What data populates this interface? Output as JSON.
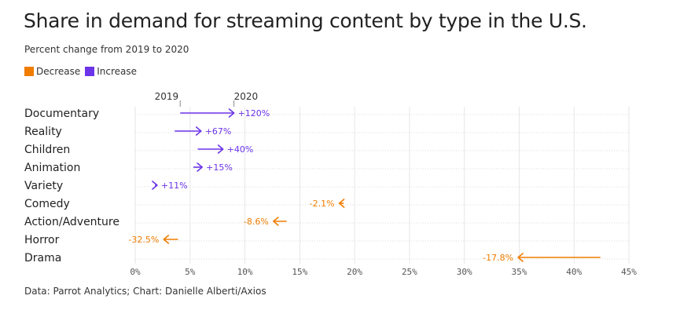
{
  "header": {
    "title": "Share in demand for streaming content by type in the U.S.",
    "subtitle": "Percent change from 2019 to 2020"
  },
  "legend": {
    "decrease_label": "Decrease",
    "increase_label": "Increase",
    "decrease_color": "#f07d00",
    "increase_color": "#6b34e8"
  },
  "year_labels": {
    "start": "2019",
    "end": "2020"
  },
  "footer": {
    "source": "Data: Parrot Analytics; Chart: Danielle Alberti/Axios"
  },
  "chart_data": {
    "type": "arrow",
    "categories": [
      "Documentary",
      "Reality",
      "Children",
      "Animation",
      "Variety",
      "Comedy",
      "Action/Adventure",
      "Horror",
      "Drama"
    ],
    "series": [
      {
        "name": "2019",
        "values": [
          4.1,
          3.6,
          5.7,
          5.3,
          1.8,
          19.0,
          13.8,
          3.9,
          42.4
        ]
      },
      {
        "name": "2020",
        "values": [
          9.0,
          6.0,
          8.0,
          6.1,
          2.0,
          18.6,
          12.6,
          2.6,
          34.9
        ]
      }
    ],
    "change_labels": [
      "+120%",
      "+67%",
      "+40%",
      "+15%",
      "+11%",
      "-2.1%",
      "-8.6%",
      "-32.5%",
      "-17.8%"
    ],
    "direction": [
      "increase",
      "increase",
      "increase",
      "increase",
      "increase",
      "decrease",
      "decrease",
      "decrease",
      "decrease"
    ],
    "x_ticks": [
      "0%",
      "5%",
      "10%",
      "15%",
      "20%",
      "25%",
      "30%",
      "35%",
      "40%",
      "45%"
    ],
    "xlim": [
      0,
      45
    ],
    "grid": true
  }
}
